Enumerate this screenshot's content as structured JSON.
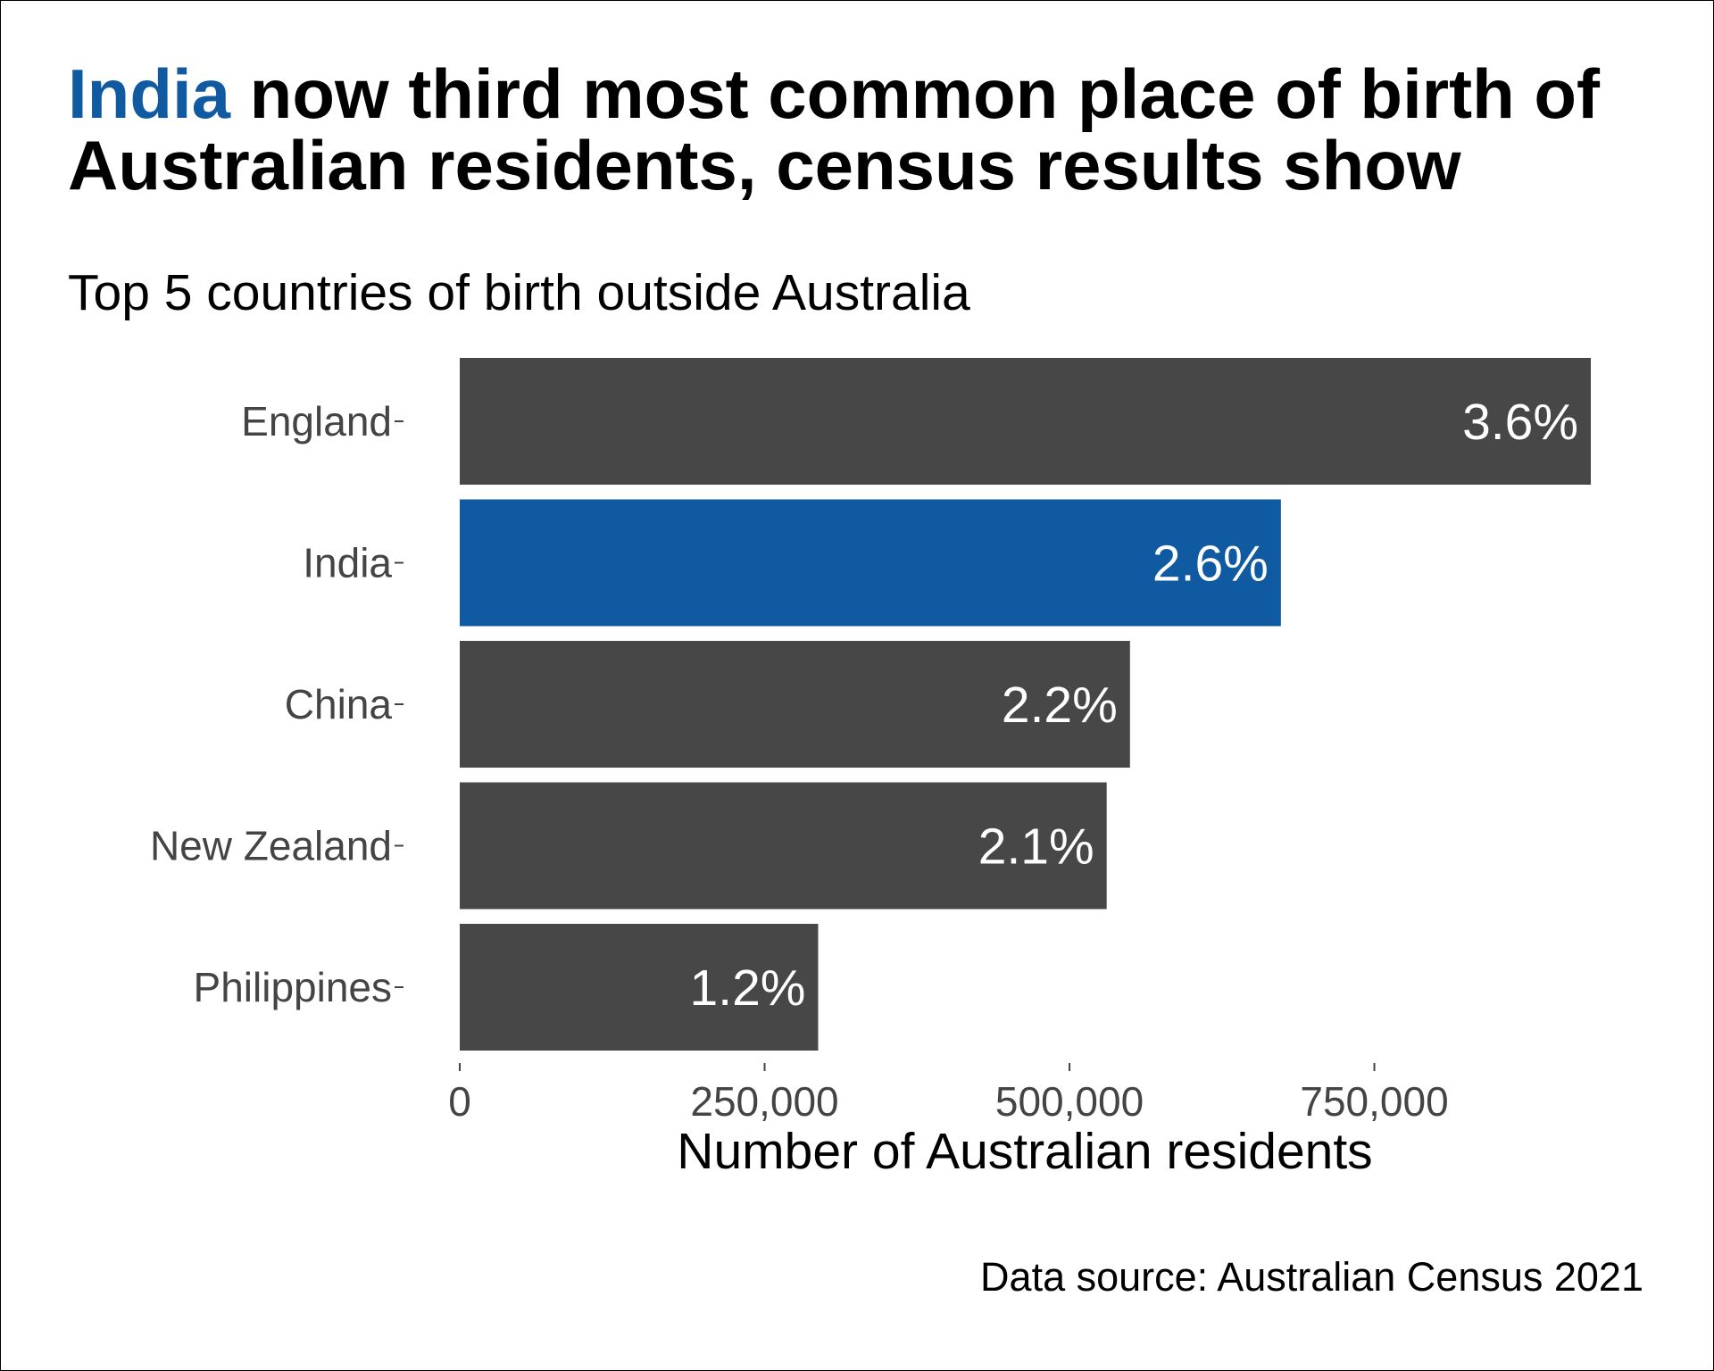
{
  "title": {
    "highlight": "India",
    "rest": " now third most common place of birth of Australian residents, census results show"
  },
  "subtitle": "Top 5 countries of birth outside Australia",
  "caption": "Data source: Australian Census 2021",
  "colors": {
    "highlight": "#0f5aa0",
    "bar": "#474747",
    "label_text": "#ffffff",
    "axis_text": "#444444"
  },
  "chart_data": {
    "type": "bar",
    "orientation": "horizontal",
    "categories": [
      "England",
      "India",
      "China",
      "New Zealand",
      "Philippines"
    ],
    "values": [
      927490,
      673352,
      549618,
      530492,
      293892
    ],
    "data_labels": [
      "3.6%",
      "2.6%",
      "2.2%",
      "2.1%",
      "1.2%"
    ],
    "highlight_category": "India",
    "xlabel": "Number of Australian residents",
    "ylabel": "",
    "xlim": [
      0,
      927490
    ],
    "x_ticks": [
      0,
      250000,
      500000,
      750000
    ],
    "x_tick_labels": [
      "0",
      "250,000",
      "500,000",
      "750,000"
    ],
    "grid": false,
    "legend": "none"
  }
}
